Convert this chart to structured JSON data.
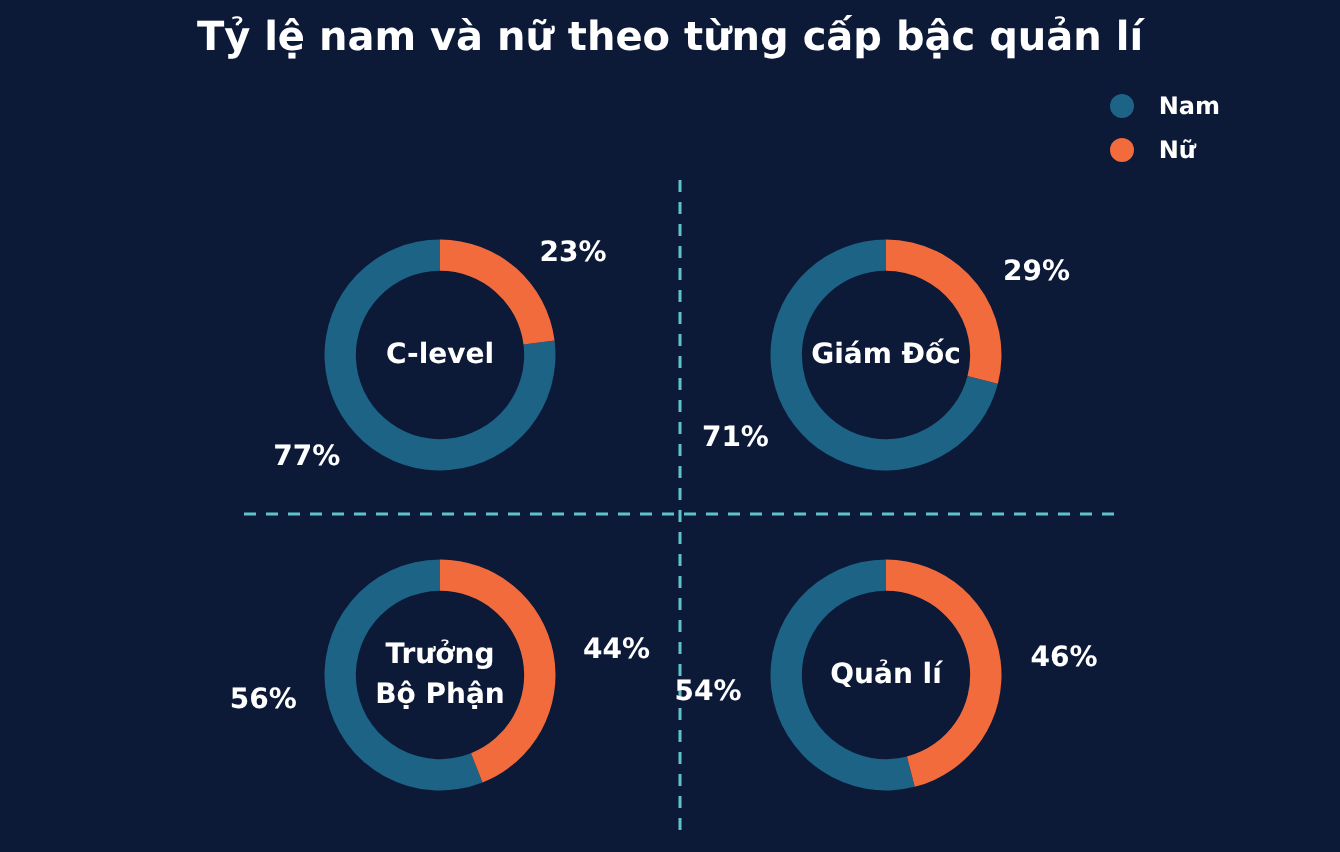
{
  "chart_data": [
    {
      "type": "other",
      "title": "Tỷ lệ nam và nữ theo từng cấp bậc quản lí"
    },
    {
      "type": "donut",
      "title": "C-level",
      "categories": [
        "Nam",
        "Nữ"
      ],
      "values": [
        77,
        23
      ],
      "colors": [
        "#1c6385",
        "#f26b3d"
      ],
      "value_labels": [
        "77%",
        "23%"
      ],
      "legend": "top right"
    },
    {
      "type": "donut",
      "title": "Giám Đốc",
      "values": [
        71,
        29
      ],
      "colors": [
        "#1c6385",
        "#f26b3d"
      ],
      "value_labels": [
        "71%",
        "29%"
      ]
    },
    {
      "type": "donut",
      "title": "Trưởng\nBộ Phận",
      "values": [
        56,
        44
      ],
      "colors": [
        "#1c6385",
        "#f26b3d"
      ],
      "value_labels": [
        "56%",
        "44%"
      ]
    },
    {
      "type": "donut",
      "title": "Quản lí",
      "values": [
        54,
        46
      ],
      "colors": [
        "#1c6385",
        "#f26b3d"
      ],
      "value_labels": [
        "54%",
        "46%"
      ]
    }
  ]
}
